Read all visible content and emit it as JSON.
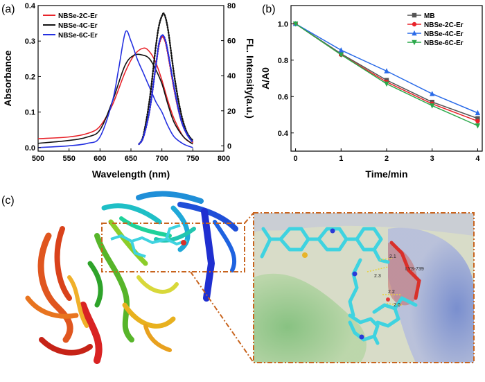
{
  "panel_labels": {
    "a": "(a)",
    "b": "(b)",
    "c": "(c)"
  },
  "chart_data": [
    {
      "type": "line",
      "xlabel": "Wavelength (nm)",
      "ylabel": "Absorbance",
      "y2label": "FL. Intensity(a.u.)",
      "xlim": [
        500,
        800
      ],
      "ylim": [
        -0.01,
        0.4
      ],
      "y2lim": [
        -3,
        80
      ],
      "xticks": [
        "500",
        "550",
        "600",
        "650",
        "700",
        "750",
        "800"
      ],
      "yticks": [
        "0.0",
        "0.1",
        "0.2",
        "0.3",
        "0.4"
      ],
      "y2ticks": [
        "0",
        "20",
        "40",
        "60",
        "80"
      ],
      "legend": "top-left",
      "colors": {
        "NBSe-2C-Er": "#e8232a",
        "NBSe-4C-Er": "#111111",
        "NBSe-6C-Er": "#2430e0"
      },
      "absorbance_series": [
        {
          "name": "NBSe-2C-Er",
          "x": [
            500,
            550,
            580,
            600,
            620,
            640,
            655,
            670,
            680,
            690,
            700,
            710,
            720,
            735,
            750
          ],
          "values": [
            0.025,
            0.03,
            0.04,
            0.06,
            0.12,
            0.21,
            0.26,
            0.28,
            0.27,
            0.24,
            0.19,
            0.13,
            0.08,
            0.03,
            0.01
          ]
        },
        {
          "name": "NBSe-4C-Er",
          "x": [
            500,
            550,
            580,
            600,
            620,
            640,
            655,
            670,
            680,
            690,
            700,
            710,
            720,
            735,
            750
          ],
          "values": [
            0.012,
            0.02,
            0.03,
            0.05,
            0.13,
            0.23,
            0.26,
            0.26,
            0.25,
            0.22,
            0.18,
            0.12,
            0.07,
            0.03,
            0.01
          ]
        },
        {
          "name": "NBSe-6C-Er",
          "x": [
            500,
            550,
            580,
            600,
            620,
            630,
            641,
            650,
            660,
            670,
            680,
            690,
            700,
            710,
            720,
            735,
            750
          ],
          "values": [
            0.0,
            0.005,
            0.012,
            0.03,
            0.13,
            0.22,
            0.325,
            0.3,
            0.25,
            0.21,
            0.17,
            0.13,
            0.1,
            0.06,
            0.03,
            0.01,
            0.0
          ]
        }
      ],
      "fluorescence_series": [
        {
          "name": "NBSe-2C-Er",
          "x": [
            663,
            670,
            680,
            690,
            695,
            700,
            705,
            710,
            720,
            730,
            740,
            750
          ],
          "values": [
            1,
            5,
            20,
            45,
            57,
            62,
            60,
            52,
            32,
            16,
            7,
            2
          ]
        },
        {
          "name": "NBSe-4C-Er",
          "x": [
            663,
            670,
            680,
            690,
            695,
            700,
            704,
            710,
            720,
            730,
            740,
            750
          ],
          "values": [
            1,
            6,
            26,
            56,
            68,
            74,
            75,
            66,
            40,
            20,
            8,
            3
          ]
        },
        {
          "name": "NBSe-6C-Er",
          "x": [
            663,
            670,
            680,
            690,
            695,
            700,
            705,
            710,
            720,
            730,
            740,
            750
          ],
          "values": [
            1,
            5,
            20,
            45,
            58,
            63,
            61,
            53,
            33,
            16,
            7,
            2
          ]
        }
      ]
    },
    {
      "type": "line",
      "xlabel": "Time/min",
      "ylabel": "A/A0",
      "xlim": [
        -0.1,
        4.1
      ],
      "ylim": [
        0.3,
        1.1
      ],
      "xticks": [
        "0",
        "1",
        "2",
        "3",
        "4"
      ],
      "yticks": [
        "0.4",
        "0.6",
        "0.8",
        "1.0"
      ],
      "legend": "top-right",
      "x": [
        0,
        1,
        2,
        3,
        4
      ],
      "series": [
        {
          "name": "MB",
          "color": "#555555",
          "marker": "square",
          "values": [
            1.0,
            0.835,
            0.69,
            0.57,
            0.48
          ]
        },
        {
          "name": "NBSe-2C-Er",
          "color": "#e8232a",
          "marker": "circle",
          "values": [
            1.0,
            0.83,
            0.68,
            0.56,
            0.465
          ]
        },
        {
          "name": "NBSe-4C-Er",
          "color": "#2a6be8",
          "marker": "triangle-up",
          "values": [
            1.0,
            0.855,
            0.74,
            0.615,
            0.51
          ]
        },
        {
          "name": "NBSe-6C-Er",
          "color": "#2aa84a",
          "marker": "triangle-down",
          "values": [
            1.0,
            0.83,
            0.67,
            0.55,
            0.44
          ]
        }
      ]
    }
  ],
  "docking": {
    "bond_labels": [
      "2.1",
      "2.3",
      "2.2",
      "2.0"
    ],
    "residue_label": "LYS-739",
    "colors": {
      "box_border": "#c8641e",
      "ligand": "#3fd3e0",
      "residue": "#d9302a"
    }
  }
}
